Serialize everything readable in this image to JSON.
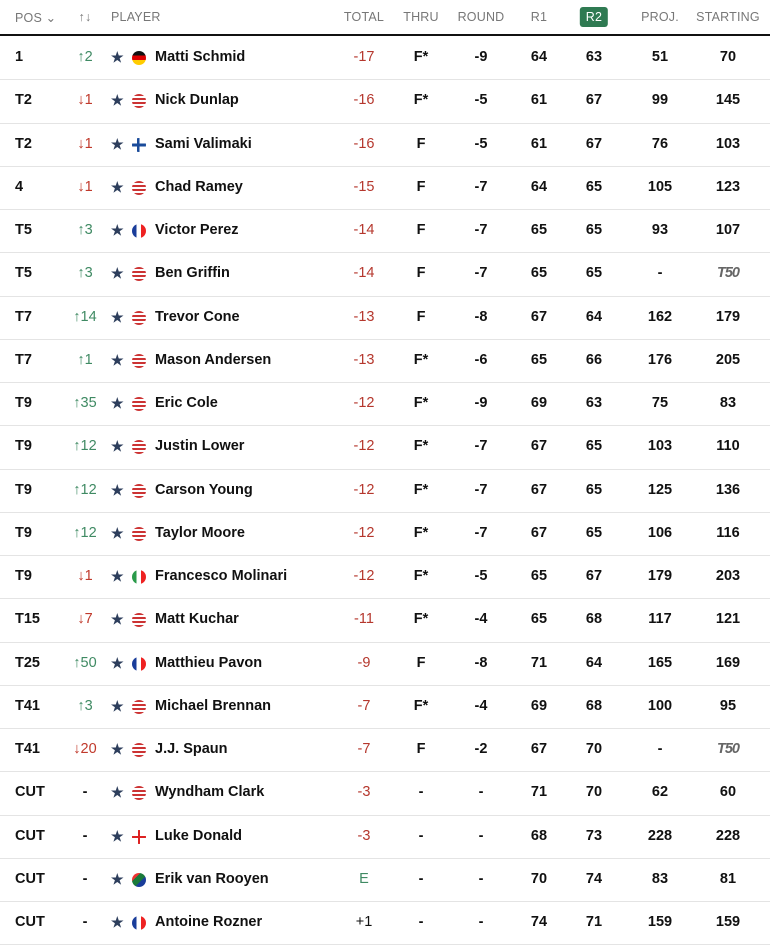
{
  "header": {
    "pos": "POS ⌄",
    "move": "↑↓",
    "player": "PLAYER",
    "total": "TOTAL",
    "thru": "THRU",
    "round": "ROUND",
    "r1": "R1",
    "r2": "R2",
    "proj": "PROJ.",
    "starting": "STARTING"
  },
  "colors": {
    "accent": "#2f7a52",
    "under_par": "#b5372d",
    "up": "#3f8a63",
    "down": "#c0392b"
  },
  "rows": [
    {
      "pos": "1",
      "move": "↑2",
      "dir": "up",
      "flag": "germany",
      "name": "Matti Schmid",
      "total": "-17",
      "thru": "F*",
      "round": "-9",
      "r1": "64",
      "r2": "63",
      "proj": "51",
      "starting": "70"
    },
    {
      "pos": "T2",
      "move": "↓1",
      "dir": "dn",
      "flag": "usa",
      "name": "Nick Dunlap",
      "total": "-16",
      "thru": "F*",
      "round": "-5",
      "r1": "61",
      "r2": "67",
      "proj": "99",
      "starting": "145"
    },
    {
      "pos": "T2",
      "move": "↓1",
      "dir": "dn",
      "flag": "finland",
      "name": "Sami Valimaki",
      "total": "-16",
      "thru": "F",
      "round": "-5",
      "r1": "61",
      "r2": "67",
      "proj": "76",
      "starting": "103"
    },
    {
      "pos": "4",
      "move": "↓1",
      "dir": "dn",
      "flag": "usa",
      "name": "Chad Ramey",
      "total": "-15",
      "thru": "F",
      "round": "-7",
      "r1": "64",
      "r2": "65",
      "proj": "105",
      "starting": "123"
    },
    {
      "pos": "T5",
      "move": "↑3",
      "dir": "up",
      "flag": "france",
      "name": "Victor Perez",
      "total": "-14",
      "thru": "F",
      "round": "-7",
      "r1": "65",
      "r2": "65",
      "proj": "93",
      "starting": "107"
    },
    {
      "pos": "T5",
      "move": "↑3",
      "dir": "up",
      "flag": "usa",
      "name": "Ben Griffin",
      "total": "-14",
      "thru": "F",
      "round": "-7",
      "r1": "65",
      "r2": "65",
      "proj": "-",
      "starting": "T50"
    },
    {
      "pos": "T7",
      "move": "↑14",
      "dir": "up",
      "flag": "usa",
      "name": "Trevor Cone",
      "total": "-13",
      "thru": "F",
      "round": "-8",
      "r1": "67",
      "r2": "64",
      "proj": "162",
      "starting": "179"
    },
    {
      "pos": "T7",
      "move": "↑1",
      "dir": "up",
      "flag": "usa",
      "name": "Mason Andersen",
      "total": "-13",
      "thru": "F*",
      "round": "-6",
      "r1": "65",
      "r2": "66",
      "proj": "176",
      "starting": "205"
    },
    {
      "pos": "T9",
      "move": "↑35",
      "dir": "up",
      "flag": "usa",
      "name": "Eric Cole",
      "total": "-12",
      "thru": "F*",
      "round": "-9",
      "r1": "69",
      "r2": "63",
      "proj": "75",
      "starting": "83"
    },
    {
      "pos": "T9",
      "move": "↑12",
      "dir": "up",
      "flag": "usa",
      "name": "Justin Lower",
      "total": "-12",
      "thru": "F*",
      "round": "-7",
      "r1": "67",
      "r2": "65",
      "proj": "103",
      "starting": "110"
    },
    {
      "pos": "T9",
      "move": "↑12",
      "dir": "up",
      "flag": "usa",
      "name": "Carson Young",
      "total": "-12",
      "thru": "F*",
      "round": "-7",
      "r1": "67",
      "r2": "65",
      "proj": "125",
      "starting": "136"
    },
    {
      "pos": "T9",
      "move": "↑12",
      "dir": "up",
      "flag": "usa",
      "name": "Taylor Moore",
      "total": "-12",
      "thru": "F*",
      "round": "-7",
      "r1": "67",
      "r2": "65",
      "proj": "106",
      "starting": "116"
    },
    {
      "pos": "T9",
      "move": "↓1",
      "dir": "dn",
      "flag": "italy",
      "name": "Francesco Molinari",
      "total": "-12",
      "thru": "F*",
      "round": "-5",
      "r1": "65",
      "r2": "67",
      "proj": "179",
      "starting": "203"
    },
    {
      "pos": "T15",
      "move": "↓7",
      "dir": "dn",
      "flag": "usa",
      "name": "Matt Kuchar",
      "total": "-11",
      "thru": "F*",
      "round": "-4",
      "r1": "65",
      "r2": "68",
      "proj": "117",
      "starting": "121"
    },
    {
      "pos": "T25",
      "move": "↑50",
      "dir": "up",
      "flag": "france",
      "name": "Matthieu Pavon",
      "total": "-9",
      "thru": "F",
      "round": "-8",
      "r1": "71",
      "r2": "64",
      "proj": "165",
      "starting": "169"
    },
    {
      "pos": "T41",
      "move": "↑3",
      "dir": "up",
      "flag": "usa",
      "name": "Michael Brennan",
      "total": "-7",
      "thru": "F*",
      "round": "-4",
      "r1": "69",
      "r2": "68",
      "proj": "100",
      "starting": "95"
    },
    {
      "pos": "T41",
      "move": "↓20",
      "dir": "dn",
      "flag": "usa",
      "name": "J.J. Spaun",
      "total": "-7",
      "thru": "F",
      "round": "-2",
      "r1": "67",
      "r2": "70",
      "proj": "-",
      "starting": "T50"
    },
    {
      "pos": "CUT",
      "move": "-",
      "dir": "none",
      "flag": "usa",
      "name": "Wyndham Clark",
      "total": "-3",
      "thru": "-",
      "round": "-",
      "r1": "71",
      "r2": "70",
      "proj": "62",
      "starting": "60"
    },
    {
      "pos": "CUT",
      "move": "-",
      "dir": "none",
      "flag": "england",
      "name": "Luke Donald",
      "total": "-3",
      "thru": "-",
      "round": "-",
      "r1": "68",
      "r2": "73",
      "proj": "228",
      "starting": "228"
    },
    {
      "pos": "CUT",
      "move": "-",
      "dir": "none",
      "flag": "south-africa",
      "name": "Erik van Rooyen",
      "total": "E",
      "thru": "-",
      "round": "-",
      "r1": "70",
      "r2": "74",
      "proj": "83",
      "starting": "81"
    },
    {
      "pos": "CUT",
      "move": "-",
      "dir": "none",
      "flag": "france",
      "name": "Antoine Rozner",
      "total": "+1",
      "thru": "-",
      "round": "-",
      "r1": "74",
      "r2": "71",
      "proj": "159",
      "starting": "159"
    }
  ]
}
